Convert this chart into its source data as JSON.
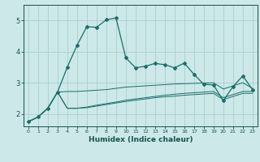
{
  "xlabel": "Humidex (Indice chaleur)",
  "background_color": "#cce8e8",
  "grid_color": "#aacfcf",
  "line_color": "#1a6e6a",
  "xlim": [
    -0.5,
    23.5
  ],
  "ylim": [
    1.6,
    5.5
  ],
  "yticks": [
    2,
    3,
    4,
    5
  ],
  "xticks": [
    0,
    1,
    2,
    3,
    4,
    5,
    6,
    7,
    8,
    9,
    10,
    11,
    12,
    13,
    14,
    15,
    16,
    17,
    18,
    19,
    20,
    21,
    22,
    23
  ],
  "series1_x": [
    0,
    1,
    2,
    3,
    4,
    5,
    6,
    7,
    8,
    9,
    10,
    11,
    12,
    13,
    14,
    15,
    16,
    17,
    18,
    19,
    20,
    21,
    22,
    23
  ],
  "series1_y": [
    1.75,
    1.9,
    2.18,
    2.7,
    3.5,
    4.2,
    4.8,
    4.78,
    5.02,
    5.08,
    3.8,
    3.48,
    3.53,
    3.62,
    3.58,
    3.48,
    3.63,
    3.27,
    2.95,
    2.93,
    2.42,
    2.88,
    3.22,
    2.78
  ],
  "series2_x": [
    0,
    1,
    2,
    3,
    4,
    5,
    6,
    7,
    8,
    9,
    10,
    11,
    12,
    13,
    14,
    15,
    16,
    17,
    18,
    19,
    20,
    21,
    22,
    23
  ],
  "series2_y": [
    1.75,
    1.9,
    2.18,
    2.7,
    2.72,
    2.72,
    2.74,
    2.76,
    2.78,
    2.82,
    2.86,
    2.88,
    2.9,
    2.92,
    2.94,
    2.96,
    2.97,
    2.98,
    2.99,
    3.0,
    2.8,
    2.9,
    3.0,
    2.82
  ],
  "series3_x": [
    0,
    1,
    2,
    3,
    4,
    5,
    6,
    7,
    8,
    9,
    10,
    11,
    12,
    13,
    14,
    15,
    16,
    17,
    18,
    19,
    20,
    21,
    22,
    23
  ],
  "series3_y": [
    1.75,
    1.9,
    2.18,
    2.7,
    2.18,
    2.18,
    2.22,
    2.28,
    2.33,
    2.38,
    2.44,
    2.48,
    2.52,
    2.56,
    2.6,
    2.63,
    2.66,
    2.68,
    2.7,
    2.72,
    2.52,
    2.62,
    2.72,
    2.72
  ],
  "series4_x": [
    0,
    1,
    2,
    3,
    4,
    5,
    6,
    7,
    8,
    9,
    10,
    11,
    12,
    13,
    14,
    15,
    16,
    17,
    18,
    19,
    20,
    21,
    22,
    23
  ],
  "series4_y": [
    1.75,
    1.9,
    2.18,
    2.7,
    2.18,
    2.18,
    2.2,
    2.25,
    2.3,
    2.35,
    2.4,
    2.44,
    2.48,
    2.52,
    2.55,
    2.57,
    2.6,
    2.62,
    2.64,
    2.66,
    2.46,
    2.56,
    2.66,
    2.66
  ]
}
